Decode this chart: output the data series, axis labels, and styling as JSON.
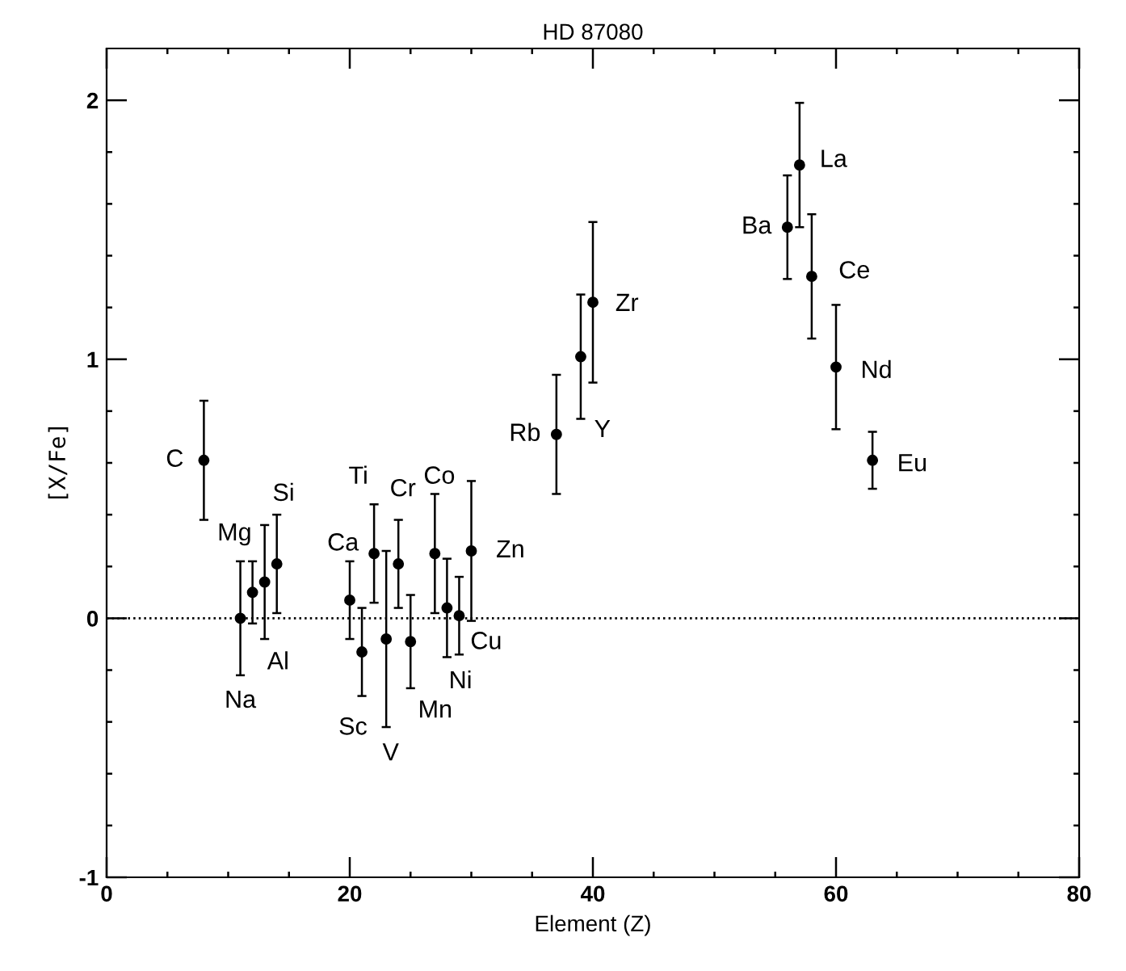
{
  "chart_data": {
    "type": "scatter",
    "title": "HD 87080",
    "xlabel": "Element (Z)",
    "ylabel": "[X/Fe]",
    "x": [
      8,
      11,
      12,
      13,
      14,
      20,
      21,
      22,
      23,
      24,
      25,
      27,
      28,
      29,
      30,
      37,
      39,
      40,
      56,
      57,
      58,
      60,
      63
    ],
    "values": [
      0.61,
      0.0,
      0.1,
      0.14,
      0.21,
      0.07,
      -0.13,
      0.25,
      -0.08,
      0.21,
      -0.09,
      0.25,
      0.04,
      0.01,
      0.26,
      0.71,
      1.01,
      1.22,
      1.51,
      1.75,
      1.32,
      0.97,
      0.61
    ],
    "errors": [
      0.23,
      0.22,
      0.12,
      0.22,
      0.19,
      0.15,
      0.17,
      0.19,
      0.34,
      0.17,
      0.18,
      0.23,
      0.19,
      0.15,
      0.27,
      0.23,
      0.24,
      0.31,
      0.2,
      0.24,
      0.24,
      0.24,
      0.11
    ],
    "color": "#000000",
    "marker": "circle",
    "annotations": [
      {
        "text": "C",
        "x": 8,
        "y": 0.61
      },
      {
        "text": "Na",
        "x": 11,
        "y": 0.0
      },
      {
        "text": "Mg",
        "x": 12,
        "y": 0.1
      },
      {
        "text": "Al",
        "x": 13,
        "y": 0.14
      },
      {
        "text": "Si",
        "x": 14,
        "y": 0.21
      },
      {
        "text": "Ca",
        "x": 20,
        "y": 0.07
      },
      {
        "text": "Sc",
        "x": 21,
        "y": -0.13
      },
      {
        "text": "Ti",
        "x": 22,
        "y": 0.25
      },
      {
        "text": "V",
        "x": 23,
        "y": -0.42
      },
      {
        "text": "Cr",
        "x": 24,
        "y": 0.21
      },
      {
        "text": "Mn",
        "x": 25,
        "y": -0.09
      },
      {
        "text": "Co",
        "x": 27,
        "y": 0.25
      },
      {
        "text": "Ni",
        "x": 28,
        "y": 0.04
      },
      {
        "text": "Cu",
        "x": 29,
        "y": 0.01
      },
      {
        "text": "Zn",
        "x": 30,
        "y": 0.26
      },
      {
        "text": "Rb",
        "x": 37,
        "y": 0.71
      },
      {
        "text": "Y",
        "x": 39,
        "y": 1.01
      },
      {
        "text": "Zr",
        "x": 40,
        "y": 1.22
      },
      {
        "text": "Ba",
        "x": 56,
        "y": 1.51
      },
      {
        "text": "La",
        "x": 57,
        "y": 1.75
      },
      {
        "text": "Ce",
        "x": 58,
        "y": 1.32
      },
      {
        "text": "Nd",
        "x": 60,
        "y": 0.97
      },
      {
        "text": "Eu",
        "x": 63,
        "y": 0.61
      }
    ],
    "ref_lines": [
      {
        "axis": "y",
        "value": 0,
        "line_style": "dotted",
        "color": "#000000"
      }
    ],
    "xlim": [
      0,
      80
    ],
    "ylim": [
      -1,
      2.2
    ],
    "xticks": [
      0,
      {
        "value": 5,
        "label": null
      },
      {
        "value": 10,
        "label": null
      },
      {
        "value": 15,
        "label": null
      },
      20,
      {
        "value": 25,
        "label": null
      },
      {
        "value": 30,
        "label": null
      },
      {
        "value": 35,
        "label": null
      },
      40,
      {
        "value": 45,
        "label": null
      },
      {
        "value": 50,
        "label": null
      },
      {
        "value": 55,
        "label": null
      },
      60,
      {
        "value": 65,
        "label": null
      },
      {
        "value": 70,
        "label": null
      },
      {
        "value": 75,
        "label": null
      },
      80
    ],
    "yticks": [
      -1,
      {
        "value": -0.8,
        "label": null
      },
      {
        "value": -0.6,
        "label": null
      },
      {
        "value": -0.4,
        "label": null
      },
      {
        "value": -0.2,
        "label": null
      },
      0,
      {
        "value": 0.2,
        "label": null
      },
      {
        "value": 0.4,
        "label": null
      },
      {
        "value": 0.6,
        "label": null
      },
      {
        "value": 0.8,
        "label": null
      },
      1,
      {
        "value": 1.2,
        "label": null
      },
      {
        "value": 1.4,
        "label": null
      },
      {
        "value": 1.6,
        "label": null
      },
      {
        "value": 1.8,
        "label": null
      },
      2
    ],
    "grid": false,
    "legend": false
  }
}
